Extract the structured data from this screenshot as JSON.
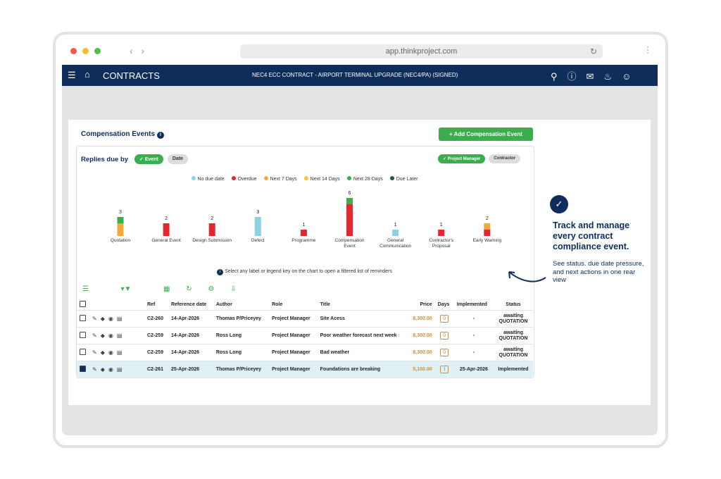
{
  "browser": {
    "url": "app.thinkproject.com"
  },
  "nav": {
    "app": "CONTRACTS",
    "contract": "NEC4 ECC CONTRACT - AIRPORT TERMINAL UPGRADE (NEC4/PA) (SIGNED)"
  },
  "section": {
    "title": "Compensation Events",
    "add_button": "Add Compensation Event"
  },
  "panel": {
    "title": "Replies due by",
    "toggles": [
      "Event",
      "Date"
    ],
    "filters": [
      "Project Manager",
      "Contractor"
    ],
    "hint": "Select any label or legend key on the chart to open a filtered list of reminders"
  },
  "chart": {
    "type": "bar",
    "stacked": true,
    "categories": [
      "Quotation",
      "General Event",
      "Design Submission",
      "Defect",
      "Programme",
      "Compensation Event",
      "General Communication",
      "Contractor's Proposal",
      "Early Warning"
    ],
    "totals": [
      3,
      2,
      2,
      3,
      1,
      6,
      1,
      1,
      2
    ],
    "series": [
      {
        "name": "No due date",
        "color": "#8ed0e6",
        "values": [
          0,
          0,
          0,
          3,
          0,
          0,
          1,
          0,
          0
        ]
      },
      {
        "name": "Overdue",
        "color": "#e3262f",
        "values": [
          0,
          2,
          2,
          0,
          1,
          5,
          0,
          1,
          1
        ]
      },
      {
        "name": "Next 7 Days",
        "color": "#f6a93b",
        "values": [
          2,
          0,
          0,
          0,
          0,
          0,
          0,
          0,
          1
        ]
      },
      {
        "name": "Next 14 Days",
        "color": "#f4c534",
        "values": [
          0,
          0,
          0,
          0,
          0,
          0,
          0,
          0,
          0
        ]
      },
      {
        "name": "Next 28 Days",
        "color": "#3aae4c",
        "values": [
          1,
          0,
          0,
          0,
          0,
          1,
          0,
          0,
          0
        ]
      },
      {
        "name": "Due Later",
        "color": "#1d5c3c",
        "values": [
          0,
          0,
          0,
          0,
          0,
          0,
          0,
          0,
          0
        ]
      }
    ]
  },
  "table": {
    "headers": [
      "Ref",
      "Reference date",
      "Author",
      "Role",
      "Title",
      "Price",
      "Days",
      "Implemented",
      "Status"
    ],
    "rows": [
      [
        "C2-260",
        "14-Apr-2026",
        "Thomas P/Priceyey",
        "Project Manager",
        "Site Acess",
        "6,300.00",
        0,
        "-",
        "awaiting QUOTATION"
      ],
      [
        "C2-259",
        "14-Apr-2026",
        "Ross Long",
        "Project Manager",
        "Poor weather forecast next week",
        "6,300.00",
        0,
        "-",
        "awaiting QUOTATION"
      ],
      [
        "C2-259",
        "14-Apr-2026",
        "Ross Long",
        "Project Manager",
        "Bad weather",
        "6,300.00",
        0,
        "-",
        "awaiting QUOTATION"
      ],
      [
        "C2-261",
        "25-Apr-2026",
        "Thomas P/Priceyey",
        "Project Manager",
        "Foundations are breaking",
        "5,100.00",
        1,
        "25-Apr-2026",
        "Implemented"
      ]
    ]
  },
  "callout": {
    "title": "Track and manage every contract compliance event.",
    "body": "See status. due date pressure, and next actions in one rear view"
  }
}
